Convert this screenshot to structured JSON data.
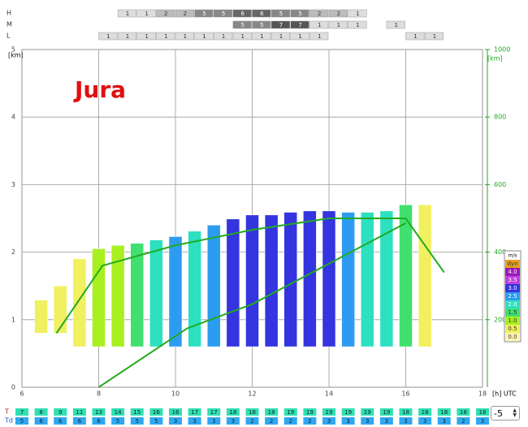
{
  "cloud_rows": [
    {
      "label": "H",
      "values": [
        null,
        null,
        null,
        null,
        null,
        1,
        1,
        2,
        2,
        5,
        5,
        6,
        6,
        5,
        5,
        2,
        2,
        1,
        null,
        null,
        null,
        null,
        null,
        null
      ]
    },
    {
      "label": "M",
      "values": [
        null,
        null,
        null,
        null,
        null,
        null,
        null,
        null,
        null,
        null,
        null,
        5,
        5,
        7,
        7,
        1,
        1,
        1,
        null,
        1,
        null,
        null,
        null,
        null
      ]
    },
    {
      "label": "L",
      "values": [
        null,
        null,
        null,
        null,
        1,
        1,
        1,
        1,
        1,
        1,
        1,
        1,
        1,
        1,
        1,
        1,
        null,
        null,
        null,
        null,
        1,
        1,
        null,
        null
      ]
    }
  ],
  "chart_data": {
    "type": "bar",
    "title": "Jura",
    "x_unit": "[h] UTC",
    "y_unit": "[km]",
    "y2_unit": "[km]",
    "xlim": [
      6,
      18
    ],
    "xticks": [
      6,
      8,
      10,
      12,
      14,
      16,
      18
    ],
    "ylim": [
      0,
      5
    ],
    "yticks": [
      0,
      1,
      2,
      3,
      4,
      5
    ],
    "y2lim": [
      0,
      1000
    ],
    "y2ticks": [
      200,
      400,
      600,
      800,
      1000
    ],
    "x": [
      6.5,
      7,
      7.5,
      8,
      8.5,
      9,
      9.5,
      10,
      10.5,
      11,
      11.5,
      12,
      12.5,
      13,
      13.5,
      14,
      14.5,
      15,
      15.5,
      16,
      16.5
    ],
    "series": [
      {
        "values": [
          1.29,
          1.5,
          1.9,
          2.05,
          2.1,
          2.13,
          2.18,
          2.23,
          2.31,
          2.4,
          2.49,
          2.55,
          2.55,
          2.59,
          2.61,
          2.61,
          2.59,
          2.59,
          2.61,
          2.7,
          2.7
        ],
        "base": [
          0.8,
          0.8,
          0.6,
          0.6,
          0.6,
          0.6,
          0.6,
          0.6,
          0.6,
          0.6,
          0.6,
          0.6,
          0.6,
          0.6,
          0.6,
          0.6,
          0.6,
          0.6,
          0.6,
          0.6,
          0.6
        ],
        "lift": [
          0.5,
          0.5,
          0.5,
          1,
          1,
          1.5,
          2,
          2.5,
          2,
          2.5,
          3,
          3,
          3,
          3,
          3,
          3,
          2.5,
          2,
          2,
          1.5,
          0.5
        ]
      }
    ],
    "lines": [
      {
        "color": "#22aa22",
        "x": [
          6.9,
          8.1,
          10,
          12,
          14,
          16,
          17
        ],
        "values": [
          0.8,
          1.8,
          2.1,
          2.33,
          2.5,
          2.5,
          1.7
        ]
      },
      {
        "color": "#22aa22",
        "x": [
          8,
          10.3,
          12,
          14,
          16
        ],
        "values": [
          0,
          0.87,
          1.23,
          1.83,
          2.43
        ]
      }
    ],
    "legend": {
      "title": "m/s",
      "items": [
        {
          "label": "dyn",
          "color": "#e8a020"
        },
        {
          "value": 4,
          "label": "4.0",
          "color": "#9a18b8"
        },
        {
          "value": 3.5,
          "label": "3.5",
          "color": "#c040e0"
        },
        {
          "value": 3,
          "label": "3.0",
          "color": "#3434e0"
        },
        {
          "value": 2.5,
          "label": "2.5",
          "color": "#2c9cf0"
        },
        {
          "value": 2,
          "label": "2.0",
          "color": "#2ce0c0"
        },
        {
          "value": 1.5,
          "label": "1.5",
          "color": "#40e070"
        },
        {
          "value": 1,
          "label": "1.0",
          "color": "#a8f020"
        },
        {
          "value": 0.5,
          "label": "0.5",
          "color": "#f0f060"
        },
        {
          "value": 0,
          "label": "0.0",
          "color": "#fff4b0"
        }
      ]
    }
  },
  "temp_rows": [
    {
      "label": "T",
      "color": "#30e0b0",
      "values": [
        7,
        8,
        9,
        11,
        13,
        14,
        15,
        16,
        16,
        17,
        17,
        18,
        18,
        18,
        19,
        19,
        19,
        19,
        19,
        19,
        18,
        18,
        18,
        18,
        18
      ]
    },
    {
      "label": "Td",
      "color": "#30a8f0",
      "values": [
        5,
        6,
        6,
        6,
        6,
        5,
        5,
        5,
        3,
        3,
        3,
        3,
        2,
        2,
        2,
        2,
        3,
        3,
        3,
        3,
        3,
        3,
        3,
        2,
        3
      ]
    }
  ],
  "offset": {
    "value": -5
  }
}
